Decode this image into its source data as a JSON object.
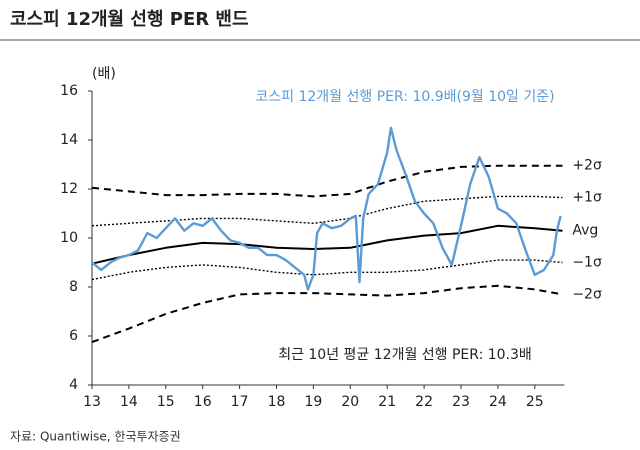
{
  "chart_data": {
    "type": "line",
    "title": "코스피 12개월 선행 PER 밴드",
    "y_label": "(배)",
    "annotations": [
      "코스피 12개월 선행 PER: 10.9배(9월 10일 기준)",
      "최근 10년 평균 12개월 선행 PER: 10.3배"
    ],
    "source": "자료: Quantiwise, 한국투자증권",
    "xlim": [
      13,
      25.8
    ],
    "xticks": [
      13,
      14,
      15,
      16,
      17,
      18,
      19,
      20,
      21,
      22,
      23,
      24,
      25
    ],
    "ylim": [
      4,
      16
    ],
    "yticks": [
      4,
      6,
      8,
      10,
      12,
      14,
      16
    ],
    "series": [
      {
        "name": "코스피 12개월 선행 PER",
        "color": "#5b9bd5",
        "style": "solid",
        "x": [
          13,
          13.25,
          13.5,
          13.75,
          14,
          14.25,
          14.5,
          14.75,
          15,
          15.25,
          15.5,
          15.75,
          16,
          16.25,
          16.5,
          16.75,
          17,
          17.25,
          17.5,
          17.75,
          18,
          18.25,
          18.5,
          18.75,
          18.85,
          19,
          19.1,
          19.25,
          19.5,
          19.75,
          20,
          20.15,
          20.25,
          20.35,
          20.5,
          20.75,
          21,
          21.1,
          21.25,
          21.5,
          21.75,
          22,
          22.25,
          22.5,
          22.75,
          23,
          23.25,
          23.5,
          23.75,
          24,
          24.25,
          24.5,
          24.75,
          25,
          25.25,
          25.5,
          25.6,
          25.7
        ],
        "values": [
          9.0,
          8.7,
          9.0,
          9.2,
          9.3,
          9.5,
          10.2,
          10.0,
          10.4,
          10.8,
          10.3,
          10.6,
          10.5,
          10.8,
          10.3,
          9.9,
          9.8,
          9.6,
          9.6,
          9.3,
          9.3,
          9.1,
          8.8,
          8.5,
          7.9,
          8.5,
          10.2,
          10.6,
          10.4,
          10.5,
          10.8,
          10.9,
          8.2,
          10.8,
          11.8,
          12.2,
          13.5,
          14.5,
          13.6,
          12.6,
          11.5,
          11.0,
          10.6,
          9.6,
          8.9,
          10.5,
          12.2,
          13.3,
          12.5,
          11.2,
          11.0,
          10.6,
          9.5,
          8.5,
          8.7,
          9.3,
          10.3,
          10.9
        ]
      },
      {
        "name": "+2σ",
        "color": "#000000",
        "style": "dashed",
        "x": [
          13,
          14,
          15,
          16,
          17,
          18,
          19,
          20,
          21,
          22,
          23,
          24,
          25,
          25.75
        ],
        "values": [
          12.05,
          11.9,
          11.75,
          11.75,
          11.8,
          11.8,
          11.7,
          11.8,
          12.3,
          12.7,
          12.9,
          12.95,
          12.95,
          12.95
        ]
      },
      {
        "name": "+1σ",
        "color": "#000000",
        "style": "dotted",
        "x": [
          13,
          14,
          15,
          16,
          17,
          18,
          19,
          20,
          21,
          22,
          23,
          24,
          25,
          25.75
        ],
        "values": [
          10.5,
          10.6,
          10.7,
          10.8,
          10.8,
          10.7,
          10.6,
          10.8,
          11.2,
          11.5,
          11.6,
          11.7,
          11.7,
          11.65
        ]
      },
      {
        "name": "Avg",
        "color": "#000000",
        "style": "solid",
        "x": [
          13,
          14,
          15,
          16,
          17,
          18,
          19,
          20,
          21,
          22,
          23,
          24,
          25,
          25.75
        ],
        "values": [
          8.95,
          9.3,
          9.6,
          9.8,
          9.75,
          9.6,
          9.55,
          9.6,
          9.9,
          10.1,
          10.2,
          10.5,
          10.4,
          10.3
        ]
      },
      {
        "name": "−1σ",
        "color": "#000000",
        "style": "dotted",
        "x": [
          13,
          14,
          15,
          16,
          17,
          18,
          19,
          20,
          21,
          22,
          23,
          24,
          25,
          25.75
        ],
        "values": [
          8.3,
          8.6,
          8.8,
          8.9,
          8.8,
          8.6,
          8.5,
          8.6,
          8.6,
          8.7,
          8.9,
          9.1,
          9.1,
          9.0
        ]
      },
      {
        "name": "−2σ",
        "color": "#000000",
        "style": "dashed",
        "x": [
          13,
          14,
          15,
          16,
          17,
          18,
          19,
          20,
          21,
          22,
          23,
          24,
          25,
          25.75
        ],
        "values": [
          5.75,
          6.3,
          6.9,
          7.35,
          7.7,
          7.75,
          7.75,
          7.7,
          7.65,
          7.75,
          7.95,
          8.05,
          7.9,
          7.7
        ]
      }
    ]
  }
}
